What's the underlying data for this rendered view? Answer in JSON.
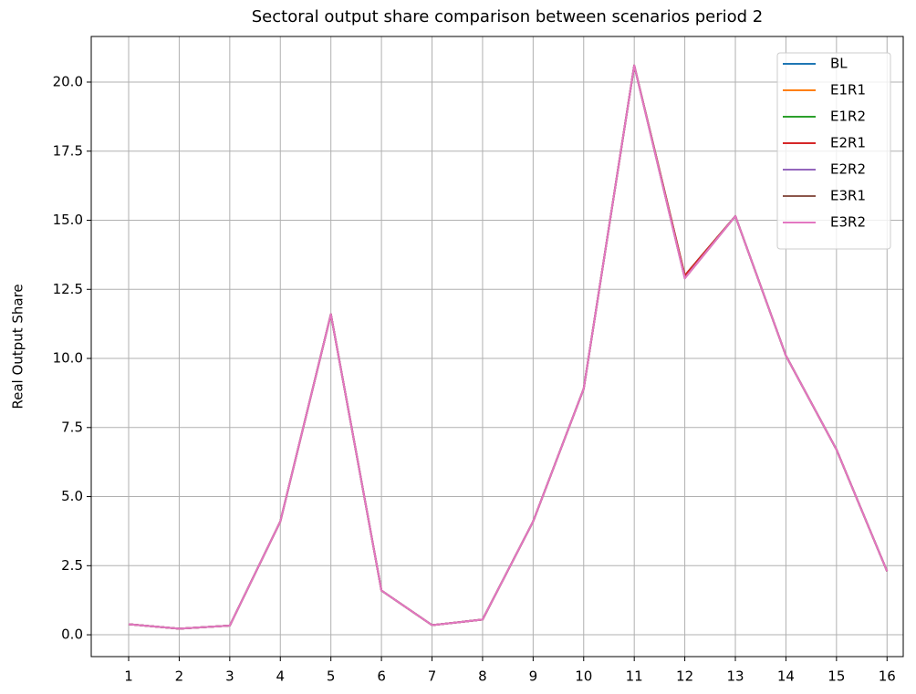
{
  "chart_data": {
    "type": "line",
    "title": "Sectoral output share comparison between scenarios period 2",
    "y_label": "Real Output Share",
    "x": [
      1,
      2,
      3,
      4,
      5,
      6,
      7,
      8,
      9,
      10,
      11,
      12,
      13,
      14,
      15,
      16
    ],
    "xlim": [
      0.26,
      16.32
    ],
    "xticks": [
      1,
      2,
      3,
      4,
      5,
      6,
      7,
      8,
      9,
      10,
      11,
      12,
      13,
      14,
      15,
      16
    ],
    "ylim": [
      -0.79,
      21.65
    ],
    "yticks": [
      {
        "value": 0,
        "label": "0.0"
      },
      2.5,
      {
        "value": 5,
        "label": "5.0"
      },
      7.5,
      {
        "value": 10,
        "label": "10.0"
      },
      12.5,
      {
        "value": 15,
        "label": "15.0"
      },
      17.5,
      {
        "value": 20,
        "label": "20.0"
      }
    ],
    "grid": true,
    "legend": "upper right",
    "series": [
      {
        "name": "BL",
        "color": "#1f77b4",
        "values": [
          0.38,
          0.22,
          0.33,
          4.1,
          11.6,
          1.6,
          0.35,
          0.55,
          4.1,
          8.9,
          20.6,
          13.0,
          15.15,
          10.1,
          6.7,
          2.3
        ]
      },
      {
        "name": "E1R1",
        "color": "#ff7f0e",
        "values": [
          0.38,
          0.22,
          0.33,
          4.1,
          11.6,
          1.6,
          0.35,
          0.55,
          4.1,
          8.9,
          20.6,
          13.0,
          15.15,
          10.1,
          6.7,
          2.3
        ]
      },
      {
        "name": "E1R2",
        "color": "#2ca02c",
        "values": [
          0.38,
          0.22,
          0.33,
          4.1,
          11.6,
          1.6,
          0.35,
          0.55,
          4.1,
          8.9,
          20.6,
          13.0,
          15.15,
          10.1,
          6.7,
          2.3
        ]
      },
      {
        "name": "E2R1",
        "color": "#d62728",
        "values": [
          0.38,
          0.22,
          0.33,
          4.1,
          11.6,
          1.6,
          0.35,
          0.55,
          4.1,
          8.9,
          20.6,
          13.0,
          15.15,
          10.1,
          6.7,
          2.3
        ]
      },
      {
        "name": "E2R2",
        "color": "#9467bd",
        "values": [
          0.38,
          0.22,
          0.33,
          4.1,
          11.6,
          1.6,
          0.35,
          0.55,
          4.1,
          8.9,
          20.6,
          12.9,
          15.15,
          10.1,
          6.7,
          2.3
        ]
      },
      {
        "name": "E3R1",
        "color": "#8c564b",
        "values": [
          0.38,
          0.22,
          0.33,
          4.1,
          11.6,
          1.6,
          0.35,
          0.55,
          4.1,
          8.9,
          20.6,
          12.9,
          15.15,
          10.1,
          6.7,
          2.3
        ]
      },
      {
        "name": "E3R2",
        "color": "#e377c2",
        "values": [
          0.38,
          0.22,
          0.33,
          4.1,
          11.6,
          1.6,
          0.35,
          0.55,
          4.1,
          8.9,
          20.6,
          12.9,
          15.15,
          10.1,
          6.7,
          2.3
        ]
      }
    ]
  }
}
